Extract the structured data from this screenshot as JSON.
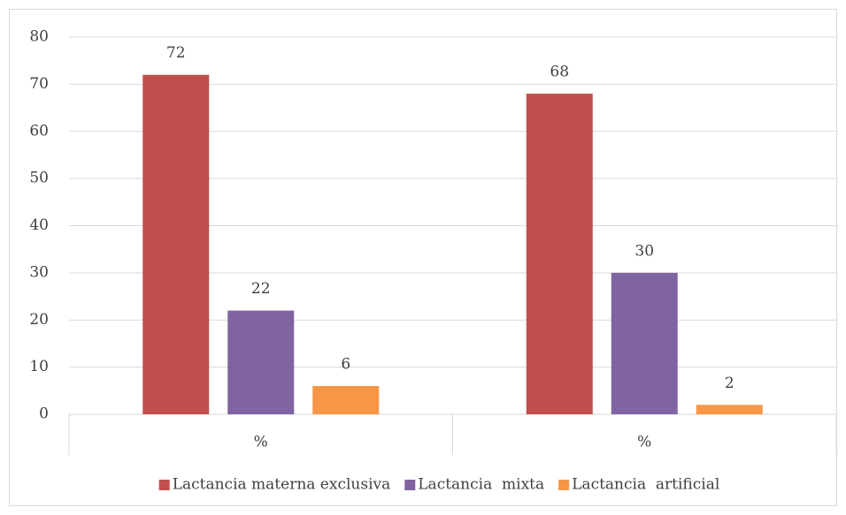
{
  "chart_data": {
    "type": "bar",
    "categories": [
      "%",
      "%"
    ],
    "series": [
      {
        "name": "Lactancia materna exclusiva",
        "color": "#c0504d",
        "values": [
          72,
          68
        ]
      },
      {
        "name": "Lactancia  mixta",
        "color": "#8064a2",
        "values": [
          22,
          30
        ]
      },
      {
        "name": "Lactancia  artificial",
        "color": "#f79646",
        "values": [
          6,
          2
        ]
      }
    ],
    "ylim": [
      0,
      80
    ],
    "yticks": [
      0,
      10,
      20,
      30,
      40,
      50,
      60,
      70,
      80
    ],
    "grid": true,
    "legend": "bottom"
  }
}
